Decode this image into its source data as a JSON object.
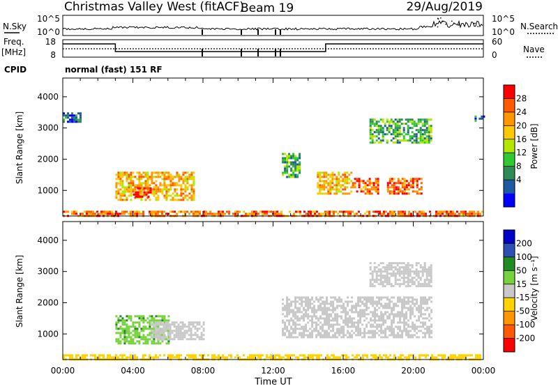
{
  "header": {
    "title": "Christmas Valley West (fitACF)",
    "beam": "Beam 19",
    "date": "29/Aug/2019",
    "cpid_label": "CPID",
    "cpid_value": "normal (fast) 151 RF"
  },
  "panel_top": {
    "nsky_label": "N.Sky",
    "nsearch_label": "N.Search",
    "left_ticks": [
      "10^5",
      "10^0"
    ],
    "right_ticks": [
      "10^5",
      "10^0"
    ]
  },
  "panel_freq": {
    "freq_label": "Freq.",
    "freq_unit": "[MHz]",
    "nave_label": "Nave",
    "left_ticks": [
      "18",
      "8"
    ],
    "right_ticks": [
      "60",
      "0"
    ]
  },
  "x_axis": {
    "label": "Time UT",
    "ticks": [
      "00:00",
      "04:00",
      "08:00",
      "12:00",
      "16:00",
      "20:00",
      "00:00"
    ]
  },
  "y_axis": {
    "label": "Slant Range [km]",
    "ticks": [
      "4000",
      "3000",
      "2000",
      "1000"
    ]
  },
  "power_scale": {
    "label": "Power [dB]",
    "ticks": [
      "28",
      "24",
      "20",
      "16",
      "12",
      "8",
      "4"
    ],
    "colors": [
      "#ff0000",
      "#ff5a00",
      "#ff9600",
      "#ffc800",
      "#b4e600",
      "#32c832",
      "#2e8b57",
      "#1e5aa0",
      "#0000ff"
    ]
  },
  "velocity_scale": {
    "label": "Velocity [m s⁻¹]",
    "ticks": [
      "200",
      "100",
      "50",
      "15",
      "-15",
      "-50",
      "-100",
      "-200"
    ],
    "colors": [
      "#0000c8",
      "#2e50b4",
      "#228b22",
      "#78d23c",
      "#c8c8c8",
      "#ffd200",
      "#ff9600",
      "#ff5a00",
      "#ff0000"
    ]
  },
  "chart_data": [
    {
      "type": "heatmap",
      "title": "Power",
      "xlabel": "Time UT",
      "ylabel": "Slant Range [km]",
      "xlim": [
        "00:00",
        "24:00"
      ],
      "ylim": [
        180,
        4600
      ],
      "colorbar": {
        "label": "Power [dB]",
        "ticks": [
          4,
          8,
          12,
          16,
          20,
          24,
          28
        ]
      },
      "regions": [
        {
          "time": [
            "03:00",
            "07:30"
          ],
          "range_km": [
            700,
            1600
          ],
          "power_db": 20
        },
        {
          "time": [
            "04:00",
            "05:00"
          ],
          "range_km": [
            800,
            1100
          ],
          "power_db": 28
        },
        {
          "time": [
            "12:30",
            "13:30"
          ],
          "range_km": [
            1400,
            2200
          ],
          "power_db": 12
        },
        {
          "time": [
            "14:30",
            "16:30"
          ],
          "range_km": [
            900,
            1600
          ],
          "power_db": 20
        },
        {
          "time": [
            "16:30",
            "18:00"
          ],
          "range_km": [
            900,
            1400
          ],
          "power_db": 24
        },
        {
          "time": [
            "18:30",
            "20:30"
          ],
          "range_km": [
            900,
            1400
          ],
          "power_db": 24
        },
        {
          "time": [
            "17:30",
            "21:00"
          ],
          "range_km": [
            2500,
            3300
          ],
          "power_db": 12
        },
        {
          "time": [
            "00:00",
            "01:00"
          ],
          "range_km": [
            3200,
            3500
          ],
          "power_db": 8
        },
        {
          "time": [
            "23:30",
            "24:00"
          ],
          "range_km": [
            3200,
            3400
          ],
          "power_db": 8
        },
        {
          "time": [
            "00:00",
            "24:00"
          ],
          "range_km": [
            180,
            350
          ],
          "power_db": 24
        }
      ]
    },
    {
      "type": "heatmap",
      "title": "Velocity",
      "xlabel": "Time UT",
      "ylabel": "Slant Range [km]",
      "xlim": [
        "00:00",
        "24:00"
      ],
      "ylim": [
        180,
        4600
      ],
      "colorbar": {
        "label": "Velocity [m s⁻¹]",
        "ticks": [
          200,
          100,
          50,
          15,
          -15,
          -50,
          -100,
          -200
        ]
      },
      "regions": [
        {
          "time": [
            "03:00",
            "06:00"
          ],
          "range_km": [
            700,
            1600
          ],
          "velocity": 40
        },
        {
          "time": [
            "05:00",
            "08:00"
          ],
          "range_km": [
            800,
            1400
          ],
          "velocity": 0
        },
        {
          "time": [
            "12:30",
            "21:00"
          ],
          "range_km": [
            900,
            2200
          ],
          "velocity": 0
        },
        {
          "time": [
            "17:30",
            "21:00"
          ],
          "range_km": [
            2500,
            3300
          ],
          "velocity": 0
        },
        {
          "time": [
            "00:00",
            "24:00"
          ],
          "range_km": [
            180,
            350
          ],
          "velocity": -30
        }
      ]
    }
  ]
}
